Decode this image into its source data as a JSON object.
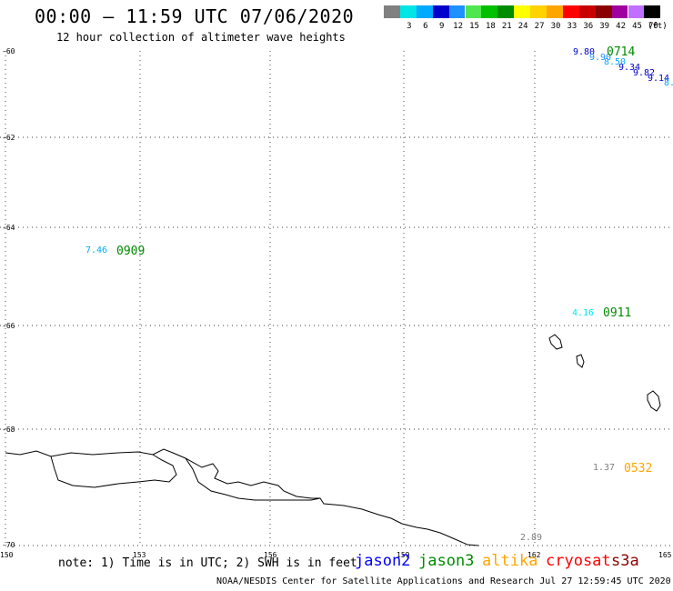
{
  "header": {
    "title": "00:00 – 11:59 UTC 07/06/2020",
    "subtitle": "12 hour collection of altimeter wave heights"
  },
  "legend": {
    "unit": "(ft)",
    "bins": [
      {
        "color": "#808080",
        "label": ""
      },
      {
        "color": "#00e5e5",
        "label": "3"
      },
      {
        "color": "#00aaff",
        "label": "6"
      },
      {
        "color": "#0000cd",
        "label": "9"
      },
      {
        "color": "#1e90ff",
        "label": "12"
      },
      {
        "color": "#50e650",
        "label": "15"
      },
      {
        "color": "#00c000",
        "label": "18"
      },
      {
        "color": "#008c00",
        "label": "21"
      },
      {
        "color": "#ffff00",
        "label": "24"
      },
      {
        "color": "#ffd200",
        "label": "27"
      },
      {
        "color": "#ffa500",
        "label": "30"
      },
      {
        "color": "#ff0000",
        "label": "33"
      },
      {
        "color": "#c80000",
        "label": "36"
      },
      {
        "color": "#8b0000",
        "label": "39"
      },
      {
        "color": "#a000a0",
        "label": "42"
      },
      {
        "color": "#c070ff",
        "label": "45"
      },
      {
        "color": "#000000",
        "label": "70"
      }
    ]
  },
  "map": {
    "lat_ticks": [
      "-60",
      "-62",
      "-64",
      "-66",
      "-68",
      "-70"
    ],
    "lon_ticks": [
      "150",
      "153",
      "156",
      "159",
      "162",
      "165"
    ],
    "observations": [
      {
        "value": "9.80",
        "color": "#0000cd"
      },
      {
        "value": "9.90",
        "color": "#1e90ff"
      },
      {
        "value": "8.50",
        "color": "#00aaff"
      },
      {
        "value": "9.34",
        "color": "#0000cd"
      },
      {
        "value": "9.82",
        "color": "#0000cd"
      },
      {
        "value": "9.14",
        "color": "#0000cd"
      },
      {
        "value": "8.",
        "color": "#00aaff"
      },
      {
        "value": "7.46",
        "color": "#00aaff"
      },
      {
        "value": "4.16",
        "color": "#00e5e5"
      },
      {
        "value": "1.37",
        "color": "#808080"
      },
      {
        "value": "2.89",
        "color": "#808080"
      }
    ],
    "pass_times": [
      {
        "time": "0714",
        "color": "#008c00"
      },
      {
        "time": "0909",
        "color": "#008c00"
      },
      {
        "time": "0911",
        "color": "#008c00"
      },
      {
        "time": "0532",
        "color": "#ffa500"
      }
    ]
  },
  "footer": {
    "note": "note: 1) Time is in UTC; 2) SWH is in feet",
    "satellites": [
      {
        "name": "jason2",
        "color": "#0000ff"
      },
      {
        "name": "jason3",
        "color": "#008c00"
      },
      {
        "name": "altika",
        "color": "#ffa500"
      },
      {
        "name": "cryosat",
        "color": "#ff0000"
      },
      {
        "name": "s3a",
        "color": "#8b0000"
      }
    ],
    "credit": "NOAA/NESDIS Center for Satellite Applications and Research   Jul 27 12:59:45 UTC 2020"
  }
}
